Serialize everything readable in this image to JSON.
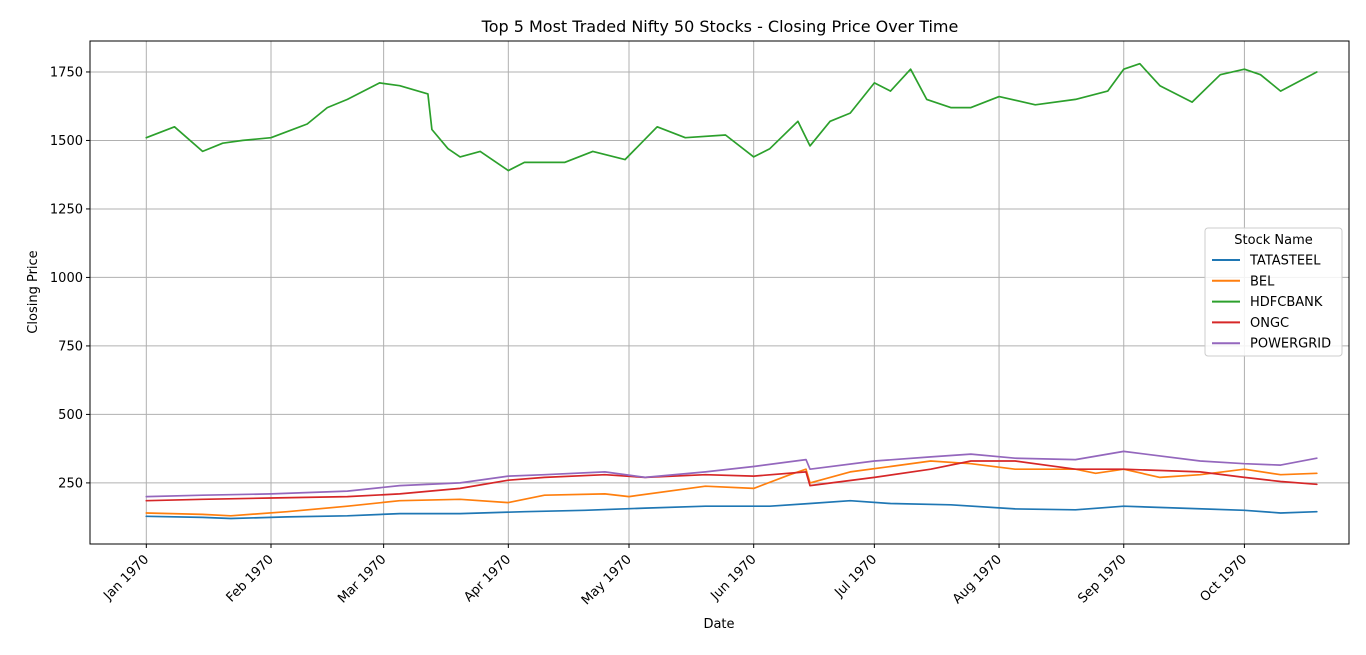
{
  "chart_data": {
    "type": "line",
    "title": "Top 5 Most Traded Nifty 50 Stocks - Closing Price Over Time",
    "xlabel": "Date",
    "ylabel": "Closing Price",
    "x_ticks": [
      {
        "date": "1970-01-01",
        "label": "Jan 1970"
      },
      {
        "date": "1970-02-01",
        "label": "Feb 1970"
      },
      {
        "date": "1970-03-01",
        "label": "Mar 1970"
      },
      {
        "date": "1970-04-01",
        "label": "Apr 1970"
      },
      {
        "date": "1970-05-01",
        "label": "May 1970"
      },
      {
        "date": "1970-06-01",
        "label": "Jun 1970"
      },
      {
        "date": "1970-07-01",
        "label": "Jul 1970"
      },
      {
        "date": "1970-08-01",
        "label": "Aug 1970"
      },
      {
        "date": "1970-09-01",
        "label": "Sep 1970"
      },
      {
        "date": "1970-10-01",
        "label": "Oct 1970"
      }
    ],
    "y_ticks": [
      250,
      500,
      750,
      1000,
      1250,
      1500,
      1750
    ],
    "xlim": [
      "1969-12-18",
      "1970-10-27"
    ],
    "ylim": [
      27,
      1863
    ],
    "grid": true,
    "legend": {
      "title": "Stock Name",
      "placement": "center-right"
    },
    "series": [
      {
        "name": "TATASTEEL",
        "color": "#1f77b4",
        "x": [
          "1970-01-01",
          "1970-01-15",
          "1970-01-22",
          "1970-02-05",
          "1970-02-20",
          "1970-03-05",
          "1970-03-20",
          "1970-04-05",
          "1970-04-20",
          "1970-05-05",
          "1970-05-20",
          "1970-06-05",
          "1970-06-15",
          "1970-06-25",
          "1970-07-05",
          "1970-07-20",
          "1970-08-05",
          "1970-08-20",
          "1970-09-01",
          "1970-09-15",
          "1970-10-01",
          "1970-10-10",
          "1970-10-19"
        ],
        "values": [
          128,
          124,
          120,
          126,
          130,
          138,
          138,
          145,
          150,
          158,
          165,
          165,
          175,
          185,
          175,
          170,
          155,
          152,
          165,
          158,
          150,
          140,
          145
        ]
      },
      {
        "name": "BEL",
        "color": "#ff7f0e",
        "x": [
          "1970-01-01",
          "1970-01-15",
          "1970-01-22",
          "1970-02-05",
          "1970-02-20",
          "1970-03-05",
          "1970-03-20",
          "1970-04-01",
          "1970-04-10",
          "1970-04-25",
          "1970-05-01",
          "1970-05-20",
          "1970-06-01",
          "1970-06-10",
          "1970-06-14",
          "1970-06-15",
          "1970-06-25",
          "1970-07-05",
          "1970-07-15",
          "1970-07-25",
          "1970-08-05",
          "1970-08-20",
          "1970-08-25",
          "1970-09-01",
          "1970-09-10",
          "1970-09-20",
          "1970-10-01",
          "1970-10-10",
          "1970-10-19"
        ],
        "values": [
          140,
          135,
          130,
          145,
          165,
          185,
          190,
          178,
          205,
          210,
          200,
          238,
          230,
          280,
          300,
          250,
          290,
          310,
          330,
          320,
          300,
          300,
          285,
          300,
          270,
          280,
          300,
          280,
          285
        ]
      },
      {
        "name": "HDFCBANK",
        "color": "#2ca02c",
        "x": [
          "1970-01-01",
          "1970-01-08",
          "1970-01-15",
          "1970-01-20",
          "1970-01-25",
          "1970-02-01",
          "1970-02-10",
          "1970-02-15",
          "1970-02-20",
          "1970-02-28",
          "1970-03-05",
          "1970-03-12",
          "1970-03-13",
          "1970-03-17",
          "1970-03-20",
          "1970-03-25",
          "1970-04-01",
          "1970-04-05",
          "1970-04-15",
          "1970-04-22",
          "1970-04-30",
          "1970-05-08",
          "1970-05-15",
          "1970-05-25",
          "1970-06-01",
          "1970-06-05",
          "1970-06-12",
          "1970-06-15",
          "1970-06-20",
          "1970-06-25",
          "1970-07-01",
          "1970-07-05",
          "1970-07-10",
          "1970-07-14",
          "1970-07-20",
          "1970-07-25",
          "1970-08-01",
          "1970-08-10",
          "1970-08-20",
          "1970-08-28",
          "1970-09-01",
          "1970-09-05",
          "1970-09-10",
          "1970-09-18",
          "1970-09-25",
          "1970-10-01",
          "1970-10-05",
          "1970-10-10",
          "1970-10-19"
        ],
        "values": [
          1510,
          1550,
          1460,
          1490,
          1500,
          1510,
          1560,
          1620,
          1650,
          1710,
          1700,
          1670,
          1540,
          1470,
          1440,
          1460,
          1390,
          1420,
          1420,
          1460,
          1430,
          1550,
          1510,
          1520,
          1440,
          1470,
          1570,
          1480,
          1570,
          1600,
          1710,
          1680,
          1760,
          1650,
          1620,
          1620,
          1660,
          1630,
          1650,
          1680,
          1760,
          1780,
          1700,
          1640,
          1740,
          1760,
          1740,
          1680,
          1750
        ]
      },
      {
        "name": "ONGC",
        "color": "#d62728",
        "x": [
          "1970-01-01",
          "1970-01-15",
          "1970-02-01",
          "1970-02-20",
          "1970-03-05",
          "1970-03-20",
          "1970-04-01",
          "1970-04-10",
          "1970-04-25",
          "1970-05-05",
          "1970-05-20",
          "1970-06-01",
          "1970-06-14",
          "1970-06-15",
          "1970-07-01",
          "1970-07-15",
          "1970-07-25",
          "1970-08-05",
          "1970-08-20",
          "1970-09-01",
          "1970-09-20",
          "1970-10-01",
          "1970-10-10",
          "1970-10-19"
        ],
        "values": [
          185,
          190,
          195,
          200,
          210,
          230,
          260,
          270,
          280,
          270,
          280,
          275,
          290,
          240,
          270,
          300,
          330,
          330,
          300,
          300,
          290,
          270,
          255,
          245
        ]
      },
      {
        "name": "POWERGRID",
        "color": "#9467bd",
        "x": [
          "1970-01-01",
          "1970-01-15",
          "1970-02-01",
          "1970-02-20",
          "1970-03-05",
          "1970-03-20",
          "1970-04-01",
          "1970-04-10",
          "1970-04-25",
          "1970-05-05",
          "1970-05-20",
          "1970-06-01",
          "1970-06-14",
          "1970-06-15",
          "1970-07-01",
          "1970-07-15",
          "1970-07-25",
          "1970-08-05",
          "1970-08-20",
          "1970-09-01",
          "1970-09-20",
          "1970-10-01",
          "1970-10-10",
          "1970-10-19"
        ],
        "values": [
          200,
          205,
          210,
          220,
          240,
          250,
          275,
          280,
          290,
          270,
          290,
          310,
          335,
          300,
          330,
          345,
          355,
          340,
          335,
          365,
          330,
          320,
          315,
          340
        ]
      }
    ]
  }
}
